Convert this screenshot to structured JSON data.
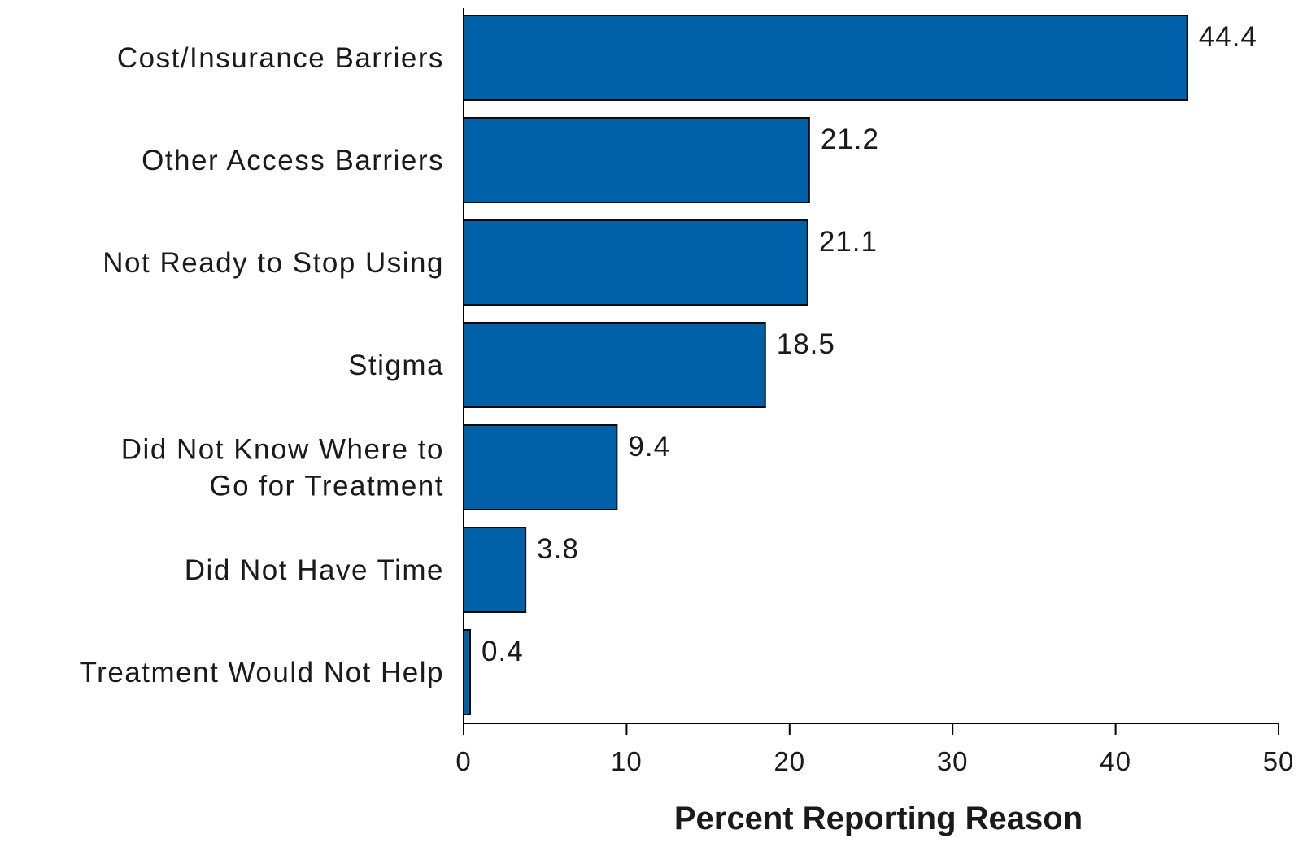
{
  "chart_data": {
    "type": "bar",
    "orientation": "horizontal",
    "categories": [
      [
        "Cost/Insurance Barriers"
      ],
      [
        "Other Access Barriers"
      ],
      [
        "Not Ready to Stop Using"
      ],
      [
        "Stigma"
      ],
      [
        "Did Not Know Where to",
        "Go for Treatment"
      ],
      [
        "Did Not Have Time"
      ],
      [
        "Treatment Would Not Help"
      ]
    ],
    "values": [
      44.4,
      21.2,
      21.1,
      18.5,
      9.4,
      3.8,
      0.4
    ],
    "value_labels": [
      "44.4",
      "21.2",
      "21.1",
      "18.5",
      "9.4",
      "3.8",
      "0.4"
    ],
    "xlabel": "Percent Reporting Reason",
    "xlim": [
      0,
      50
    ],
    "xticks": [
      0,
      10,
      20,
      30,
      40,
      50
    ],
    "grid": false,
    "colors": {
      "bar": "#0060a8",
      "bar_stroke": "#0a0a0a",
      "axis": "#000000"
    }
  }
}
